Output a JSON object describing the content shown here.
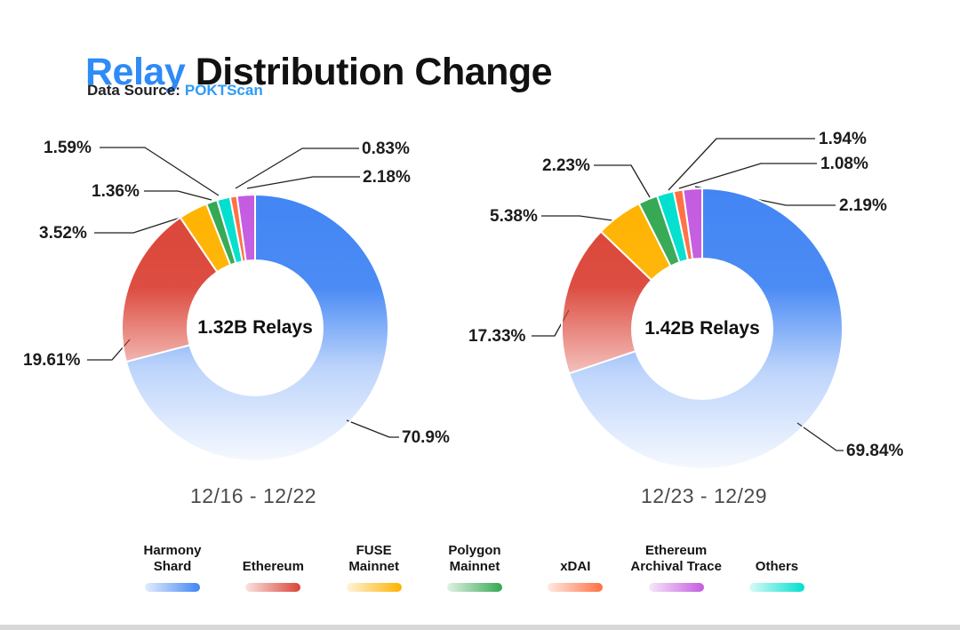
{
  "header": {
    "title_highlight": "Relay",
    "title_rest": " Distribution Change",
    "source_label": "Data Source:",
    "source_value": "POKTScan",
    "accent_color": "#2E8BF7"
  },
  "chart_data": [
    {
      "type": "pie",
      "title": "12/16 - 12/22",
      "center_label": "1.32B Relays",
      "donut": true,
      "slices": [
        {
          "name": "Harmony Shard",
          "value": 70.9,
          "label": "70.9%",
          "color": "#4285F4"
        },
        {
          "name": "Ethereum",
          "value": 19.61,
          "label": "19.61%",
          "color": "#DB4437"
        },
        {
          "name": "FUSE Mainnet",
          "value": 3.52,
          "label": "3.52%",
          "color": "#FFB300"
        },
        {
          "name": "Polygon Mainnet",
          "value": 1.36,
          "label": "1.36%",
          "color": "#34A853"
        },
        {
          "name": "Others",
          "value": 1.59,
          "label": "1.59%",
          "color": "#00DFCE"
        },
        {
          "name": "xDAI",
          "value": 0.83,
          "label": "0.83%",
          "color": "#FF7043"
        },
        {
          "name": "Ethereum Archival Trace",
          "value": 2.18,
          "label": "2.18%",
          "color": "#C45BE0"
        }
      ]
    },
    {
      "type": "pie",
      "title": "12/23 - 12/29",
      "center_label": "1.42B Relays",
      "donut": true,
      "slices": [
        {
          "name": "Harmony Shard",
          "value": 69.84,
          "label": "69.84%",
          "color": "#4285F4"
        },
        {
          "name": "Ethereum",
          "value": 17.33,
          "label": "17.33%",
          "color": "#DB4437"
        },
        {
          "name": "FUSE Mainnet",
          "value": 5.38,
          "label": "5.38%",
          "color": "#FFB300"
        },
        {
          "name": "Polygon Mainnet",
          "value": 2.23,
          "label": "2.23%",
          "color": "#34A853"
        },
        {
          "name": "Others",
          "value": 1.94,
          "label": "1.94%",
          "color": "#00DFCE"
        },
        {
          "name": "xDAI",
          "value": 1.08,
          "label": "1.08%",
          "color": "#FF7043"
        },
        {
          "name": "Ethereum Archival Trace",
          "value": 2.19,
          "label": "2.19%",
          "color": "#C45BE0"
        }
      ]
    }
  ],
  "legend": [
    {
      "label": "Harmony\nShard",
      "color": "#4285F4"
    },
    {
      "label": "Ethereum",
      "color": "#DB4437"
    },
    {
      "label": "FUSE\nMainnet",
      "color": "#FFB300"
    },
    {
      "label": "Polygon\nMainnet",
      "color": "#34A853"
    },
    {
      "label": "xDAI",
      "color": "#FF7043"
    },
    {
      "label": "Ethereum\nArchival Trace",
      "color": "#C45BE0"
    },
    {
      "label": "Others",
      "color": "#00DFCE"
    }
  ]
}
